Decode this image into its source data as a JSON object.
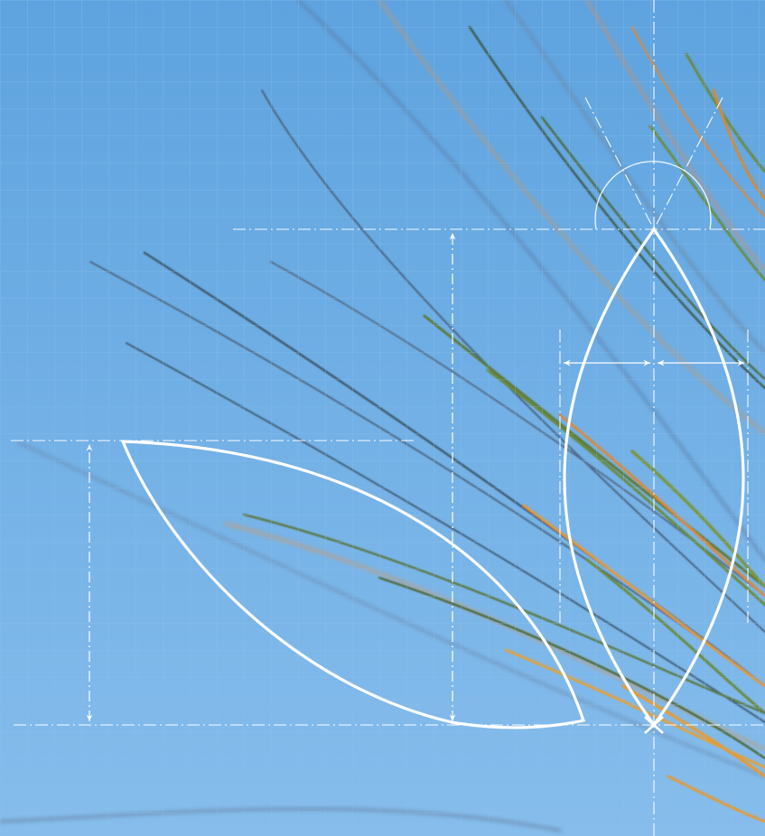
{
  "image": {
    "description_role": "decorative",
    "colors": {
      "sky_top": "#5ea3df",
      "sky_bottom": "#86bdec",
      "grid_line": "#7fb6e6",
      "construction_line": "#ffffff",
      "grass_green": "#5d7a3a",
      "grass_dark": "#3d5a6e",
      "grass_orange": "#d98a3a",
      "grass_blue": "#5b7fa8"
    }
  },
  "shapes": [
    {
      "name": "vertical-leaf",
      "kind": "vesica"
    },
    {
      "name": "horizontal-leaf",
      "kind": "lens-segment"
    }
  ],
  "dimensions": [
    {
      "name": "leaf-height-dimension",
      "label": ""
    },
    {
      "name": "left-width-dimension",
      "label": ""
    },
    {
      "name": "right-width-dimension",
      "label": ""
    },
    {
      "name": "segment-height-dimension",
      "label": ""
    }
  ],
  "annotations": [
    {
      "name": "apex-angle-arc",
      "label": ""
    }
  ]
}
